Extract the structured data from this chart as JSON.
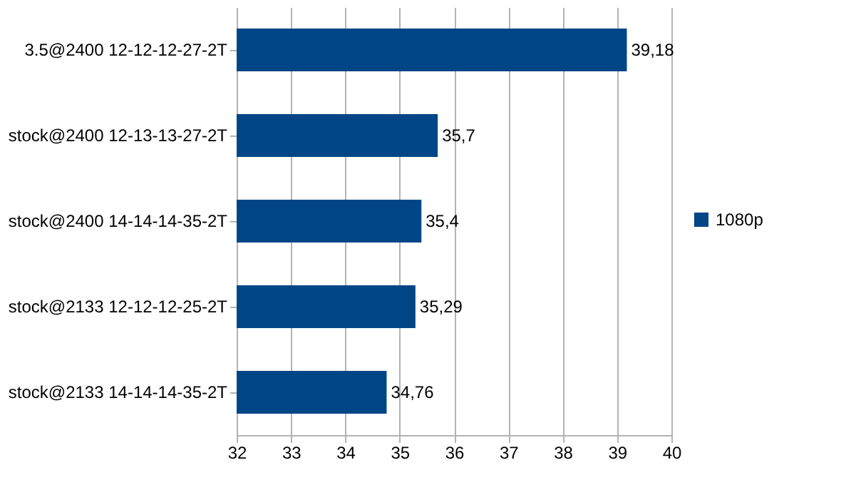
{
  "chart_data": {
    "type": "bar",
    "orientation": "horizontal",
    "categories": [
      "3.5@2400 12-12-12-27-2T",
      "stock@2400 12-13-13-27-2T",
      "stock@2400 14-14-14-35-2T",
      "stock@2133 12-12-12-25-2T",
      "stock@2133 14-14-14-35-2T"
    ],
    "series": [
      {
        "name": "1080p",
        "color": "#004586",
        "values": [
          39.18,
          35.7,
          35.4,
          35.29,
          34.76
        ],
        "value_labels": [
          "39,18",
          "35,7",
          "35,4",
          "35,29",
          "34,76"
        ]
      }
    ],
    "xlim": [
      32,
      40
    ],
    "xticks": [
      32,
      33,
      34,
      35,
      36,
      37,
      38,
      39,
      40
    ],
    "grid": "x",
    "legend": "right"
  }
}
